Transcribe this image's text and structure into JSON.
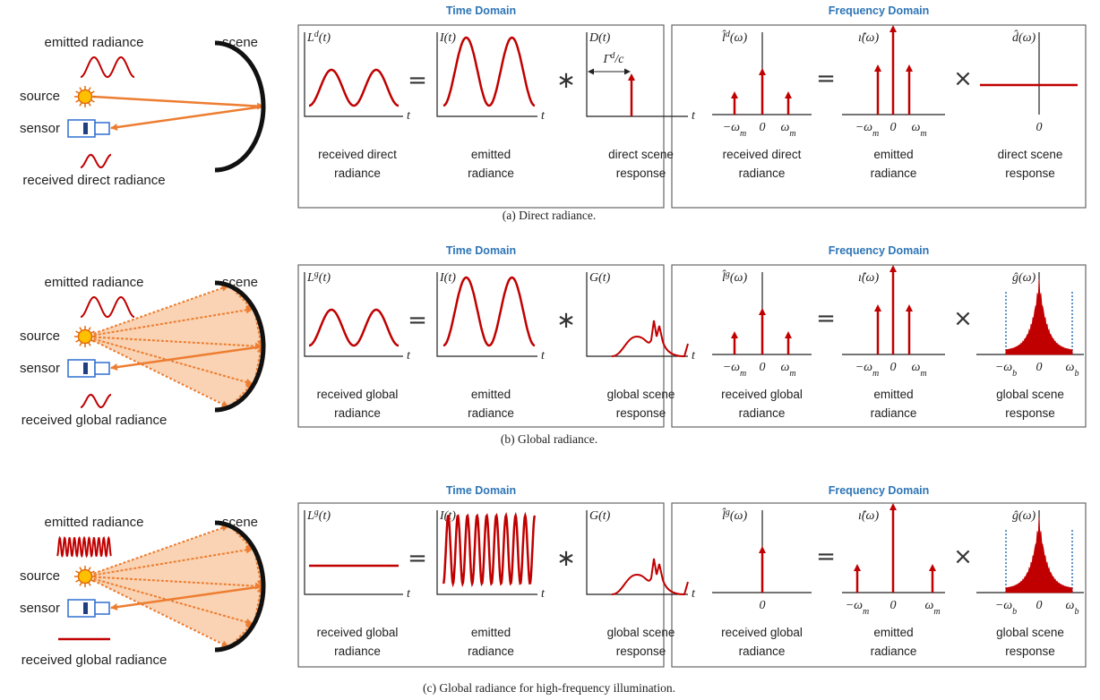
{
  "rows": [
    {
      "scene": {
        "emitted_label": "emitted radiance",
        "source_label": "source",
        "sensor_label": "sensor",
        "received_label": "received direct radiance",
        "scene_label": "scene"
      },
      "time_domain": {
        "title": "Time Domain",
        "operators": [
          "=",
          "∗"
        ],
        "plots": [
          {
            "label": {
              "base": "L",
              "sup": "d",
              "arg": "(t)"
            },
            "axis_label": "t",
            "caption": [
              "received direct",
              "radiance"
            ]
          },
          {
            "label": {
              "base": "I",
              "arg": "(t)"
            },
            "axis_label": "t",
            "caption": [
              "emitted",
              "radiance"
            ]
          },
          {
            "label": {
              "base": "D",
              "arg": "(t)"
            },
            "axis_label": "t",
            "annotation": {
              "base": "Γ",
              "sup": "d",
              "arg": "/c"
            },
            "caption": [
              "direct scene",
              "response"
            ]
          }
        ]
      },
      "frequency_domain": {
        "title": "Frequency Domain",
        "operators": [
          "=",
          "×"
        ],
        "plots": [
          {
            "label": {
              "base": "l̂",
              "sup": "d",
              "arg": "(ω)"
            },
            "ticks": [
              {
                "base": "−ω",
                "sub": "m"
              },
              "0",
              {
                "base": "ω",
                "sub": "m"
              }
            ],
            "caption": [
              "received direct",
              "radiance"
            ]
          },
          {
            "label": {
              "base": "ı̂",
              "arg": "(ω)"
            },
            "ticks": [
              {
                "base": "−ω",
                "sub": "m"
              },
              "0",
              {
                "base": "ω",
                "sub": "m"
              }
            ],
            "caption": [
              "emitted",
              "radiance"
            ]
          },
          {
            "label": {
              "base": "d̂",
              "arg": "(ω)"
            },
            "ticks": [
              "0"
            ],
            "caption": [
              "direct scene",
              "response"
            ]
          }
        ]
      },
      "caption": "(a) Direct radiance."
    },
    {
      "scene": {
        "emitted_label": "emitted radiance",
        "source_label": "source",
        "sensor_label": "sensor",
        "received_label": "received global radiance",
        "scene_label": "scene"
      },
      "time_domain": {
        "title": "Time Domain",
        "operators": [
          "=",
          "∗"
        ],
        "plots": [
          {
            "label": {
              "base": "L",
              "sup": "g",
              "arg": "(t)"
            },
            "axis_label": "t",
            "caption": [
              "received global",
              "radiance"
            ]
          },
          {
            "label": {
              "base": "I",
              "arg": "(t)"
            },
            "axis_label": "t",
            "caption": [
              "emitted",
              "radiance"
            ]
          },
          {
            "label": {
              "base": "G",
              "arg": "(t)"
            },
            "axis_label": "t",
            "caption": [
              "global scene",
              "response"
            ]
          }
        ]
      },
      "frequency_domain": {
        "title": "Frequency Domain",
        "operators": [
          "=",
          "×"
        ],
        "plots": [
          {
            "label": {
              "base": "l̂",
              "sup": "g",
              "arg": "(ω)"
            },
            "ticks": [
              {
                "base": "−ω",
                "sub": "m"
              },
              "0",
              {
                "base": "ω",
                "sub": "m"
              }
            ],
            "caption": [
              "received global",
              "radiance"
            ]
          },
          {
            "label": {
              "base": "ı̂",
              "arg": "(ω)"
            },
            "ticks": [
              {
                "base": "−ω",
                "sub": "m"
              },
              "0",
              {
                "base": "ω",
                "sub": "m"
              }
            ],
            "caption": [
              "emitted",
              "radiance"
            ]
          },
          {
            "label": {
              "base": "ĝ",
              "arg": "(ω)"
            },
            "ticks": [
              {
                "base": "−ω",
                "sub": "b"
              },
              "0",
              {
                "base": "ω",
                "sub": "b"
              }
            ],
            "caption": [
              "global scene",
              "response"
            ]
          }
        ]
      },
      "caption": "(b) Global radiance."
    },
    {
      "scene": {
        "emitted_label": "emitted radiance",
        "source_label": "source",
        "sensor_label": "sensor",
        "received_label": "received global radiance",
        "scene_label": "scene"
      },
      "time_domain": {
        "title": "Time Domain",
        "operators": [
          "=",
          "∗"
        ],
        "plots": [
          {
            "label": {
              "base": "L",
              "sup": "g",
              "arg": "(t)"
            },
            "axis_label": "t",
            "caption": [
              "received global",
              "radiance"
            ]
          },
          {
            "label": {
              "base": "I",
              "arg": "(t)"
            },
            "axis_label": "t",
            "caption": [
              "emitted",
              "radiance"
            ]
          },
          {
            "label": {
              "base": "G",
              "arg": "(t)"
            },
            "axis_label": "t",
            "caption": [
              "global scene",
              "response"
            ]
          }
        ]
      },
      "frequency_domain": {
        "title": "Frequency Domain",
        "operators": [
          "=",
          "×"
        ],
        "plots": [
          {
            "label": {
              "base": "l̂",
              "sup": "g",
              "arg": "(ω)"
            },
            "ticks": [
              "0"
            ],
            "caption": [
              "received global",
              "radiance"
            ]
          },
          {
            "label": {
              "base": "ı̂",
              "arg": "(ω)"
            },
            "ticks": [
              {
                "base": "−ω",
                "sub": "m"
              },
              "0",
              {
                "base": "ω",
                "sub": "m"
              }
            ],
            "caption": [
              "emitted",
              "radiance"
            ]
          },
          {
            "label": {
              "base": "ĝ",
              "arg": "(ω)"
            },
            "ticks": [
              {
                "base": "−ω",
                "sub": "b"
              },
              "0",
              {
                "base": "ω",
                "sub": "b"
              }
            ],
            "caption": [
              "global scene",
              "response"
            ]
          }
        ]
      },
      "caption": "(c) Global radiance for high-frequency illumination."
    }
  ]
}
